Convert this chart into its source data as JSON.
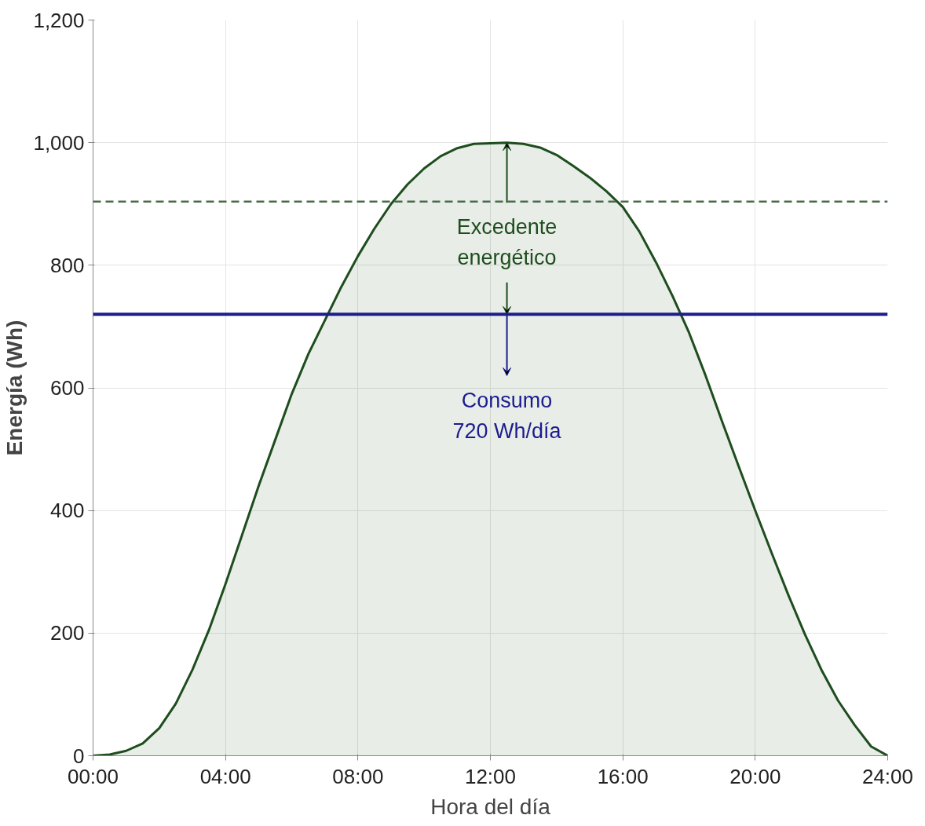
{
  "chart_data": {
    "type": "area",
    "xlabel": "Hora del día",
    "ylabel": "Energía (Wh)",
    "x": [
      0,
      0.5,
      1,
      1.5,
      2,
      2.5,
      3,
      3.5,
      4,
      4.5,
      5,
      5.5,
      6,
      6.5,
      7,
      7.5,
      8,
      8.5,
      9,
      9.5,
      10,
      10.5,
      11,
      11.5,
      12,
      12.5,
      13,
      13.5,
      14,
      14.5,
      15,
      15.5,
      16,
      16.5,
      17,
      17.5,
      18,
      18.5,
      19,
      19.5,
      20,
      20.5,
      21,
      21.5,
      22,
      22.5,
      23,
      23.5,
      24
    ],
    "series": [
      {
        "color": "#1e4d1e",
        "values": [
          0,
          2,
          8,
          20,
          45,
          85,
          140,
          205,
          280,
          360,
          440,
          515,
          590,
          655,
          710,
          765,
          815,
          860,
          900,
          932,
          958,
          978,
          991,
          998,
          999,
          1000,
          998,
          992,
          980,
          962,
          943,
          921,
          895,
          855,
          805,
          750,
          690,
          620,
          545,
          472,
          400,
          330,
          262,
          198,
          140,
          90,
          50,
          15,
          0
        ]
      }
    ],
    "xlim": [
      0,
      24
    ],
    "ylim": [
      0,
      1200
    ],
    "xticks": [
      {
        "value": 0,
        "label": "00:00"
      },
      {
        "value": 4,
        "label": "04:00"
      },
      {
        "value": 8,
        "label": "08:00"
      },
      {
        "value": 12,
        "label": "12:00"
      },
      {
        "value": 16,
        "label": "16:00"
      },
      {
        "value": 20,
        "label": "20:00"
      },
      {
        "value": 24,
        "label": "24:00"
      }
    ],
    "yticks": [
      0,
      200,
      400,
      600,
      800,
      {
        "value": 1000,
        "label": "1,000"
      },
      {
        "value": 1200,
        "label": "1,200"
      }
    ],
    "grid": true,
    "ref_lines": [
      {
        "axis": "y",
        "value": 904,
        "color": "#4a6b4a",
        "line_style": "dashed"
      },
      {
        "axis": "y",
        "value": 720,
        "color": "#1c1c8f",
        "line_style": "solid"
      }
    ],
    "annotations": [
      {
        "text": "Excedente\nenergético",
        "x": 12.5,
        "y": 1000
      },
      "Consumo\n720 Wh/día"
    ]
  }
}
